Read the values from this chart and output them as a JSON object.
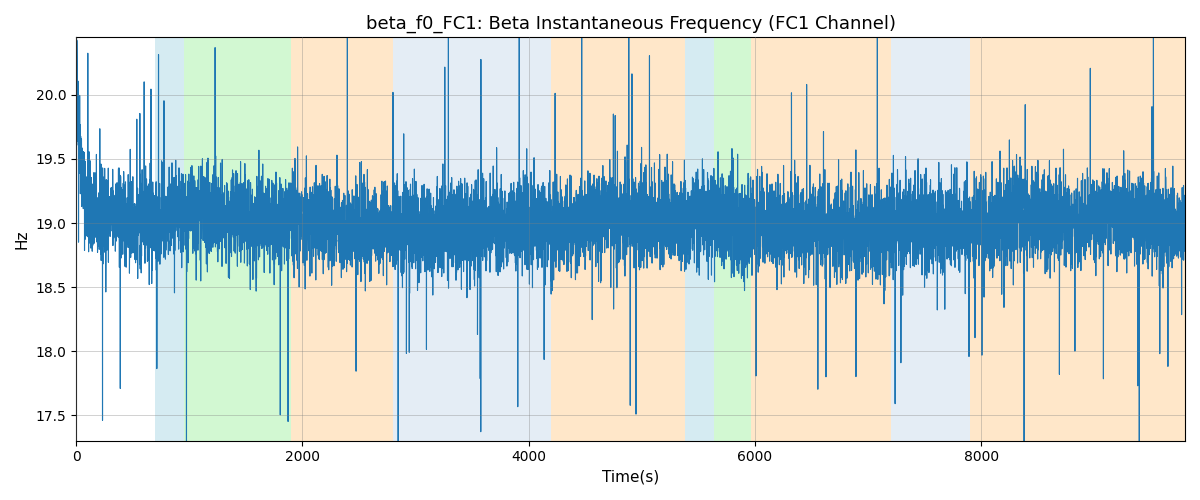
{
  "title": "beta_f0_FC1: Beta Instantaneous Frequency (FC1 Channel)",
  "xlabel": "Time(s)",
  "ylabel": "Hz",
  "xlim": [
    0,
    9800
  ],
  "ylim": [
    17.3,
    20.45
  ],
  "line_color": "#1f77b4",
  "line_width": 0.8,
  "bg_bands": [
    {
      "xmin": 700,
      "xmax": 950,
      "color": "#add8e6",
      "alpha": 0.5
    },
    {
      "xmin": 950,
      "xmax": 1900,
      "color": "#90ee90",
      "alpha": 0.4
    },
    {
      "xmin": 1900,
      "xmax": 2800,
      "color": "#ffd59e",
      "alpha": 0.55
    },
    {
      "xmin": 2800,
      "xmax": 4200,
      "color": "#c5d8ea",
      "alpha": 0.45
    },
    {
      "xmin": 4200,
      "xmax": 5380,
      "color": "#ffd59e",
      "alpha": 0.55
    },
    {
      "xmin": 5380,
      "xmax": 5640,
      "color": "#add8e6",
      "alpha": 0.5
    },
    {
      "xmin": 5640,
      "xmax": 5960,
      "color": "#90ee90",
      "alpha": 0.4
    },
    {
      "xmin": 5960,
      "xmax": 7200,
      "color": "#ffd59e",
      "alpha": 0.55
    },
    {
      "xmin": 7200,
      "xmax": 7900,
      "color": "#c5d8ea",
      "alpha": 0.45
    },
    {
      "xmin": 7900,
      "xmax": 9800,
      "color": "#ffd59e",
      "alpha": 0.55
    }
  ],
  "seed": 42,
  "n_points": 9800,
  "base_freq": 19.0,
  "noise_amp": 0.18,
  "spike_amp": 0.9,
  "spike_prob": 0.008,
  "yticks": [
    17.5,
    18.0,
    18.5,
    19.0,
    19.5,
    20.0
  ],
  "xticks": [
    0,
    2000,
    4000,
    6000,
    8000
  ]
}
